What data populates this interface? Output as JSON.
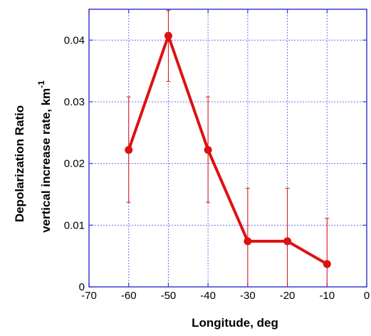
{
  "chart_data": {
    "type": "line",
    "xlabel": "Longitude, deg",
    "ylabel_line1": "Depolarization Ratio",
    "ylabel_line2": "vertical increase rate, km",
    "ylabel_superscript": "-1",
    "xlim": [
      -70,
      0
    ],
    "ylim": [
      0,
      0.045
    ],
    "x_ticks": [
      -70,
      -60,
      -50,
      -40,
      -30,
      -20,
      -10,
      0
    ],
    "x_tick_labels": [
      "-70",
      "-60",
      "-50",
      "-40",
      "-30",
      "-20",
      "-10",
      "0"
    ],
    "y_ticks": [
      0,
      0.01,
      0.02,
      0.03,
      0.04
    ],
    "y_tick_labels": [
      "0",
      "0.01",
      "0.02",
      "0.03",
      "0.04"
    ],
    "grid": true,
    "colors": {
      "series": "#dd1111",
      "grid": "#6f6fef",
      "frame": "#3b3bd4"
    },
    "series": [
      {
        "x": [
          -60,
          -50,
          -40,
          -30,
          -20,
          -10
        ],
        "y": [
          0.0222,
          0.0407,
          0.0222,
          0.0074,
          0.0074,
          0.0037
        ],
        "error_upper": [
          0.0308,
          0.0448,
          0.0308,
          0.016,
          0.016,
          0.0111
        ],
        "error_lower": [
          0.0137,
          0.0333,
          0.0137,
          0.0,
          0.0,
          0.0
        ]
      }
    ]
  }
}
